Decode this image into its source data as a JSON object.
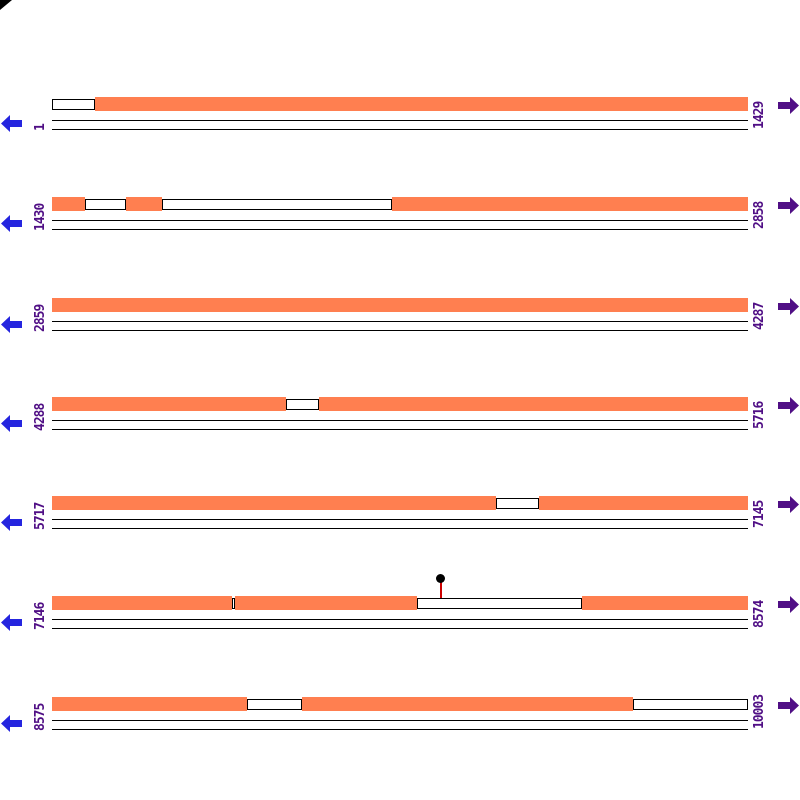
{
  "app": {
    "view_name": "sequence-alignment-view",
    "background": "#ffffff"
  },
  "colors": {
    "match_fill": "#FF7F50",
    "box_outline": "#000000",
    "strand_line": "#000000",
    "back_arrow": "#2525DF",
    "forward_arrow": "#500F85",
    "label_text": "#500F85",
    "marker_stem": "#CC0000",
    "marker_head": "#000000"
  },
  "chart_data": {
    "type": "heatmap",
    "title": "",
    "description_of_depicted_data": "seven stacked sequence panels; coral blocks = matched/covered regions (fractions of panel width), white outlined blocks = gaps",
    "tracks": [
      {
        "start_label": "1",
        "end_label": "1429",
        "segments": [
          {
            "kind": "gap",
            "from": 0.0,
            "to": 0.062
          },
          {
            "kind": "match",
            "from": 0.062,
            "to": 1.0
          }
        ]
      },
      {
        "start_label": "1430",
        "end_label": "2858",
        "segments": [
          {
            "kind": "match",
            "from": 0.0,
            "to": 0.047
          },
          {
            "kind": "gap",
            "from": 0.047,
            "to": 0.106
          },
          {
            "kind": "match",
            "from": 0.106,
            "to": 0.158
          },
          {
            "kind": "gap",
            "from": 0.158,
            "to": 0.489
          },
          {
            "kind": "match",
            "from": 0.489,
            "to": 1.0
          }
        ]
      },
      {
        "start_label": "2859",
        "end_label": "4287",
        "segments": [
          {
            "kind": "match",
            "from": 0.0,
            "to": 1.0
          }
        ]
      },
      {
        "start_label": "4288",
        "end_label": "5716",
        "segments": [
          {
            "kind": "match",
            "from": 0.0,
            "to": 0.336
          },
          {
            "kind": "gap",
            "from": 0.336,
            "to": 0.384
          },
          {
            "kind": "match",
            "from": 0.384,
            "to": 1.0
          }
        ]
      },
      {
        "start_label": "5717",
        "end_label": "7145",
        "segments": [
          {
            "kind": "match",
            "from": 0.0,
            "to": 0.638
          },
          {
            "kind": "gap",
            "from": 0.638,
            "to": 0.7
          },
          {
            "kind": "match",
            "from": 0.7,
            "to": 1.0
          }
        ]
      },
      {
        "start_label": "7146",
        "end_label": "8574",
        "segments": [
          {
            "kind": "match",
            "from": 0.0,
            "to": 0.259
          },
          {
            "kind": "gap",
            "from": 0.259,
            "to": 0.263
          },
          {
            "kind": "match",
            "from": 0.263,
            "to": 0.524
          },
          {
            "kind": "gap",
            "from": 0.524,
            "to": 0.761
          },
          {
            "kind": "match",
            "from": 0.761,
            "to": 1.0
          }
        ],
        "marker": {
          "at": 0.559
        }
      },
      {
        "start_label": "8575",
        "end_label": "10003",
        "segments": [
          {
            "kind": "match",
            "from": 0.0,
            "to": 0.28
          },
          {
            "kind": "gap",
            "from": 0.28,
            "to": 0.359
          },
          {
            "kind": "match",
            "from": 0.359,
            "to": 0.835
          },
          {
            "kind": "gap",
            "from": 0.835,
            "to": 1.0
          }
        ]
      }
    ]
  }
}
